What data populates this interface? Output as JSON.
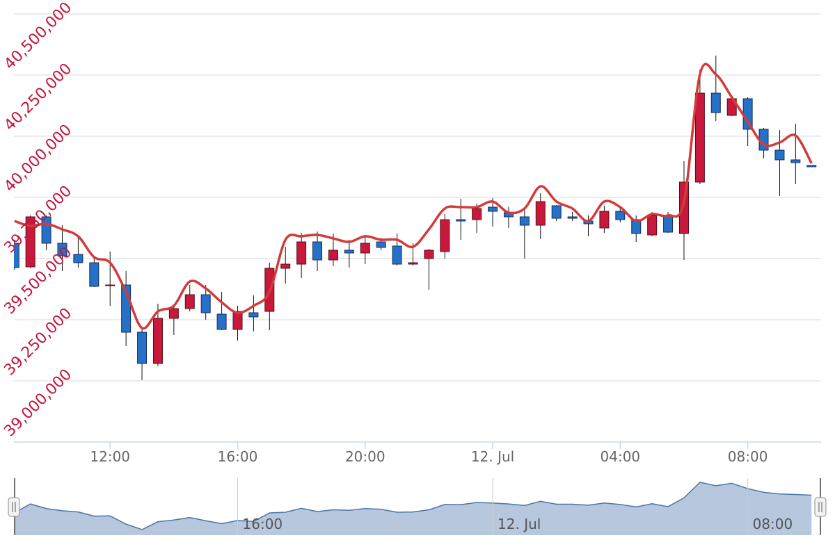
{
  "chart_data": {
    "type": "candlestick",
    "x": [
      "Jul 11 09:00",
      "Jul 11 09:30",
      "Jul 11 10:00",
      "Jul 11 10:30",
      "Jul 11 11:00",
      "Jul 11 11:30",
      "Jul 11 12:00",
      "Jul 11 12:30",
      "Jul 11 13:00",
      "Jul 11 13:30",
      "Jul 11 14:00",
      "Jul 11 14:30",
      "Jul 11 15:00",
      "Jul 11 15:30",
      "Jul 11 16:00",
      "Jul 11 16:30",
      "Jul 11 17:00",
      "Jul 11 17:30",
      "Jul 11 18:00",
      "Jul 11 18:30",
      "Jul 11 19:00",
      "Jul 11 19:30",
      "Jul 11 20:00",
      "Jul 11 20:30",
      "Jul 11 21:00",
      "Jul 11 21:30",
      "Jul 11 22:00",
      "Jul 11 22:30",
      "Jul 11 23:00",
      "Jul 11 23:30",
      "Jul 12 00:00",
      "Jul 12 00:30",
      "Jul 12 01:00",
      "Jul 12 01:30",
      "Jul 12 02:00",
      "Jul 12 02:30",
      "Jul 12 03:00",
      "Jul 12 03:30",
      "Jul 12 04:00",
      "Jul 12 04:30",
      "Jul 12 05:00",
      "Jul 12 05:30",
      "Jul 12 06:00",
      "Jul 12 06:30",
      "Jul 12 07:00",
      "Jul 12 07:30",
      "Jul 12 08:00",
      "Jul 12 08:30",
      "Jul 12 09:00",
      "Jul 12 09:30",
      "Jul 12 10:00"
    ],
    "open": [
      39562500,
      39465900,
      39670400,
      39562500,
      39517000,
      39482900,
      39389100,
      39392000,
      39198800,
      39071000,
      39255600,
      39295400,
      39352200,
      39272700,
      39210200,
      39278400,
      39284000,
      39460200,
      39477200,
      39568100,
      39494300,
      39534000,
      39522700,
      39568100,
      39551100,
      39477200,
      39500000,
      39528400,
      39659000,
      39659000,
      39710200,
      39687500,
      39670400,
      39636300,
      39715900,
      39670400,
      39653400,
      39625000,
      39693100,
      39659000,
      39596500,
      39676100,
      39602200,
      39812500,
      40176100,
      40085200,
      40153400,
      40028400,
      39943100,
      39903400,
      39880600
    ],
    "high": [
      39576700,
      39676100,
      39676100,
      39636300,
      39590900,
      39505600,
      39528400,
      39448800,
      39221500,
      39315300,
      39312400,
      39392000,
      39392000,
      39363600,
      39306800,
      39349400,
      39482900,
      39548200,
      39605100,
      39610700,
      39602200,
      39576700,
      39596500,
      39585200,
      39602200,
      39562500,
      39539700,
      39681800,
      39744300,
      39724400,
      39747100,
      39710200,
      39710200,
      39767000,
      39718700,
      39690300,
      39676100,
      39715900,
      39704500,
      39676100,
      39690300,
      39690300,
      39897700,
      40272700,
      40329500,
      40159100,
      40159100,
      40034100,
      40025500,
      40051100,
      39880600
    ],
    "low": [
      39454500,
      39460200,
      39534000,
      39448800,
      39463000,
      39383500,
      39306800,
      39142000,
      39002800,
      39059600,
      39187400,
      39284000,
      39249900,
      39207300,
      39164700,
      39201600,
      39207300,
      39397700,
      39420400,
      39448800,
      39468700,
      39463000,
      39477200,
      39534000,
      39471500,
      39471500,
      39372100,
      39500000,
      39576700,
      39605100,
      39630600,
      39625000,
      39500000,
      39579500,
      39653400,
      39653400,
      39590900,
      39605100,
      39647700,
      39568100,
      39590900,
      39605100,
      39494300,
      39803900,
      40062500,
      40082400,
      39960200,
      39909100,
      39755600,
      39803900,
      39875000
    ],
    "close": [
      39463000,
      39670400,
      39562500,
      39511300,
      39482900,
      39386300,
      39392000,
      39198800,
      39071000,
      39255600,
      39295400,
      39352200,
      39278400,
      39210200,
      39284000,
      39261300,
      39460200,
      39477200,
      39568100,
      39494300,
      39534000,
      39522700,
      39562500,
      39545400,
      39477200,
      39482900,
      39534000,
      39659000,
      39653400,
      39704500,
      39693100,
      39670400,
      39636300,
      39732900,
      39664700,
      39664700,
      39642000,
      39693100,
      39659000,
      39602200,
      39676100,
      39607900,
      39812500,
      40176100,
      40096600,
      40153400,
      40028400,
      39943100,
      39903400,
      39892000,
      39875000
    ],
    "up_color": "#c8193c",
    "down_color": "#2670c8",
    "line": {
      "color": "#d43a3a",
      "values": [
        39653400,
        39633500,
        39642000,
        39619300,
        39590900,
        39505600,
        39482900,
        39363600,
        39215800,
        39284000,
        39306800,
        39406200,
        39377800,
        39321000,
        39278400,
        39306800,
        39363600,
        39576700,
        39590900,
        39596500,
        39582300,
        39568100,
        39590900,
        39576700,
        39576700,
        39548200,
        39619300,
        39704500,
        39710200,
        39710200,
        39732900,
        39687500,
        39704500,
        39795400,
        39732900,
        39704500,
        39653400,
        39732900,
        39710200,
        39653400,
        39681800,
        39676100,
        39732900,
        40252800,
        40252800,
        40159100,
        40059600,
        39965900,
        39974400,
        40002800,
        39889200
      ]
    },
    "xlim": [
      "Jul 11 08:59",
      "Jul 12 10:18"
    ],
    "xticks": [
      {
        "value": "Jul 11 12:00",
        "label": "12:00"
      },
      {
        "value": "Jul 11 16:00",
        "label": "16:00"
      },
      {
        "value": "Jul 11 20:00",
        "label": "20:00"
      },
      {
        "value": "Jul 12 00:00",
        "label": "12. Jul"
      },
      {
        "value": "Jul 12 04:00",
        "label": "04:00"
      },
      {
        "value": "Jul 12 08:00",
        "label": "08:00"
      }
    ],
    "ylim": [
      38750000,
      40500000
    ],
    "yticks": [
      {
        "value": 39000000,
        "label": "39,000,000"
      },
      {
        "value": 39250000,
        "label": "39,250,000"
      },
      {
        "value": 39500000,
        "label": "39,500,000"
      },
      {
        "value": 39750000,
        "label": "39,750,000"
      },
      {
        "value": 40000000,
        "label": "40,000,000"
      },
      {
        "value": 40250000,
        "label": "40,250,000"
      },
      {
        "value": 40500000,
        "label": "40,500,000"
      }
    ],
    "grid": true,
    "navigator": {
      "color": "#b6c7de",
      "line_color": "#4a76a8",
      "xticks": [
        {
          "value": "Jul 11 16:00",
          "label": "16:00"
        },
        {
          "value": "Jul 12 00:00",
          "label": "12. Jul"
        },
        {
          "value": "Jul 12 08:00",
          "label": "08:00"
        }
      ]
    }
  }
}
